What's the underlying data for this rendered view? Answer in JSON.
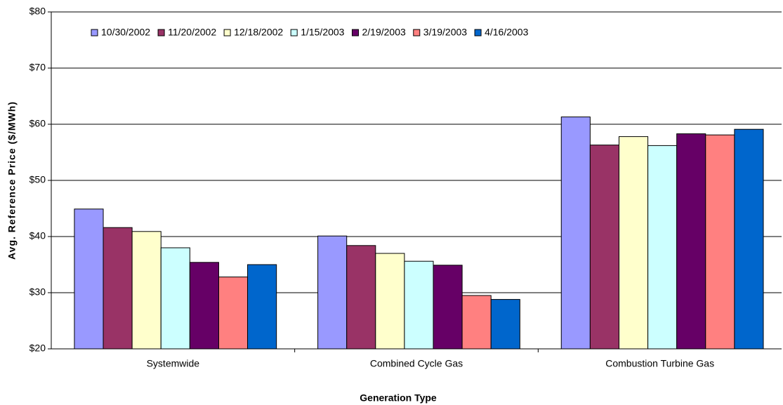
{
  "chart_data": {
    "type": "bar",
    "x_label": "Generation Type",
    "y_label": "Avg. Reference Price ($/MWh)",
    "categories": [
      "Systemwide",
      "Combined Cycle Gas",
      "Combustion Turbine Gas"
    ],
    "series": [
      {
        "name": "10/30/2002",
        "color": "#9999ff",
        "values": [
          44.9,
          40.1,
          61.3
        ]
      },
      {
        "name": "11/20/2002",
        "color": "#993366",
        "values": [
          41.6,
          38.4,
          56.3
        ]
      },
      {
        "name": "12/18/2002",
        "color": "#ffffcc",
        "values": [
          40.9,
          37.0,
          57.8
        ]
      },
      {
        "name": "1/15/2003",
        "color": "#ccffff",
        "values": [
          38.0,
          35.6,
          56.2
        ]
      },
      {
        "name": "2/19/2003",
        "color": "#660066",
        "values": [
          35.4,
          34.9,
          58.3
        ]
      },
      {
        "name": "3/19/2003",
        "color": "#ff8080",
        "values": [
          32.8,
          29.5,
          58.1
        ]
      },
      {
        "name": "4/16/2003",
        "color": "#0066cc",
        "values": [
          35.0,
          28.8,
          59.1
        ]
      }
    ],
    "ylim": [
      20,
      80
    ],
    "yticks": [
      {
        "value": 20,
        "label": "$20"
      },
      {
        "value": 30,
        "label": "$30"
      },
      {
        "value": 40,
        "label": "$40"
      },
      {
        "value": 50,
        "label": "$50"
      },
      {
        "value": 60,
        "label": "$60"
      },
      {
        "value": 70,
        "label": "$70"
      },
      {
        "value": 80,
        "label": "$80"
      }
    ],
    "grid": true
  }
}
